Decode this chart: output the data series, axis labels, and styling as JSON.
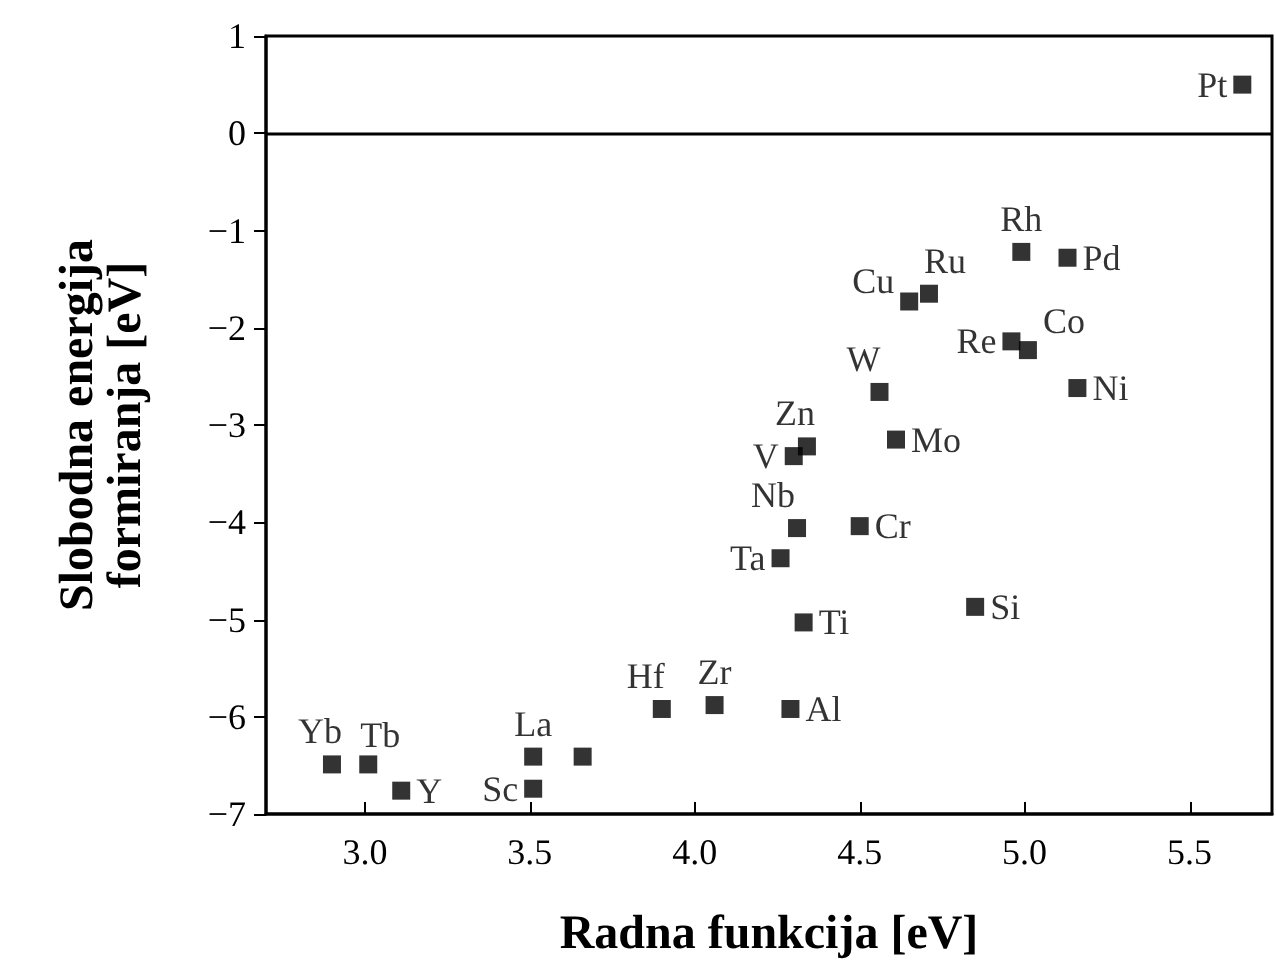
{
  "chart_data": {
    "type": "scatter",
    "xlabel": "Radna funkcija [eV]",
    "ylabel": "Slobodna energija\nformiranja [eV]",
    "x": [
      5.66,
      4.99,
      5.13,
      4.65,
      4.71,
      4.96,
      5.01,
      5.16,
      4.56,
      4.61,
      4.34,
      4.3,
      4.31,
      4.5,
      4.26,
      4.33,
      4.85,
      3.9,
      4.06,
      4.29,
      3.66,
      3.51,
      3.51,
      2.9,
      3.01,
      3.11
    ],
    "series": [
      {
        "color": "#000000",
        "values": [
          0.5,
          -1.22,
          -1.28,
          -1.73,
          -1.65,
          -2.14,
          -2.23,
          -2.62,
          -2.66,
          -3.15,
          -3.22,
          -3.32,
          -4.06,
          -4.04,
          -4.37,
          -5.03,
          -4.87,
          -5.92,
          -5.88,
          -5.92,
          -6.41,
          -6.41,
          -6.74,
          -6.49,
          -6.49,
          -6.76
        ],
        "value_labels": [
          "Pt",
          "Rh",
          "Pd",
          "Cu",
          "Ru",
          "Re",
          "Co",
          "Ni",
          "W",
          "Mo",
          "Zn",
          "V",
          "Nb",
          "Cr",
          "Ta",
          "Ti",
          "Si",
          "Hf",
          "Zr",
          "Al",
          null,
          "La",
          "Sc",
          "Yb",
          "Tb",
          "Y"
        ]
      }
    ],
    "xlim": [
      2.7,
      5.75
    ],
    "xticks": [
      {
        "value": 3,
        "label": "3.0"
      },
      3.5,
      {
        "value": 4,
        "label": "4.0"
      },
      4.5,
      {
        "value": 5,
        "label": "5.0"
      },
      5.5
    ],
    "ylim": [
      -7,
      1
    ],
    "yticks": [
      1,
      0,
      -1,
      -2,
      -3,
      -4,
      -5,
      -6,
      -7
    ],
    "ref_lines": [
      {
        "axis": "y",
        "value": 0,
        "color": "#000000"
      }
    ],
    "marker": "square"
  }
}
